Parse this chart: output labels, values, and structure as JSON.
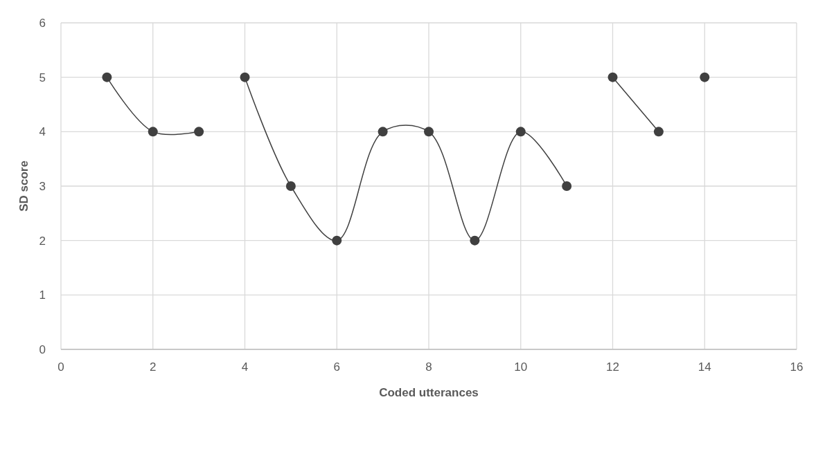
{
  "chart_data": {
    "type": "line",
    "xlabel": "Coded utterances",
    "ylabel": "SD score",
    "series": [
      {
        "color": "#404040",
        "x": [
          1,
          2,
          3
        ],
        "values": [
          5,
          4,
          4
        ]
      },
      {
        "color": "#404040",
        "x": [
          4,
          5,
          6,
          7,
          8,
          9,
          10,
          11
        ],
        "values": [
          5,
          3,
          2,
          4,
          4,
          2,
          4,
          3
        ]
      },
      {
        "color": "#404040",
        "x": [
          12,
          13
        ],
        "values": [
          5,
          4
        ]
      },
      {
        "color": "#404040",
        "x": [
          14
        ],
        "values": [
          5
        ]
      }
    ],
    "xlim": [
      0,
      16
    ],
    "xticks": [
      0,
      2,
      4,
      6,
      8,
      10,
      12,
      14,
      16
    ],
    "ylim": [
      0,
      6
    ],
    "yticks": [
      0,
      1,
      2,
      3,
      4,
      5,
      6
    ],
    "grid": true,
    "marker": "circle",
    "line_style": "solid"
  }
}
